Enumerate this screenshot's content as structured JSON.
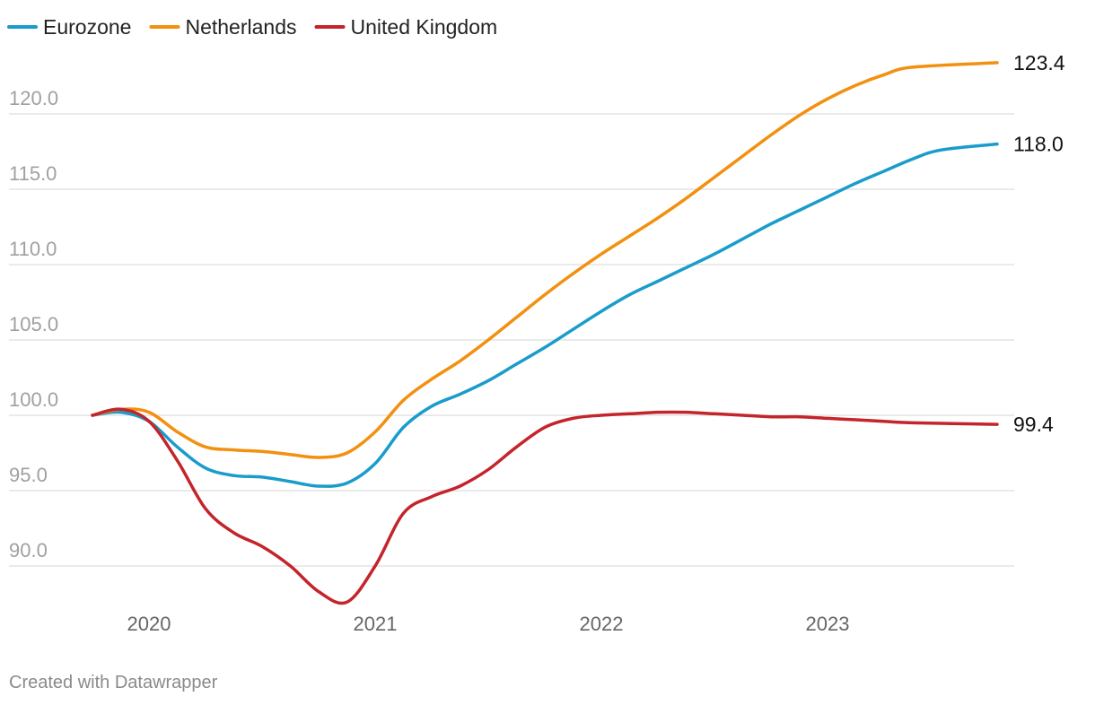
{
  "footer": "Created with Datawrapper",
  "chart_data": {
    "type": "line",
    "title": "",
    "xlabel": "",
    "ylabel": "",
    "ylim": [
      87.5,
      125
    ],
    "yticks": [
      90,
      95,
      100,
      105,
      110,
      115,
      120
    ],
    "ytick_labels": [
      "90.0",
      "95.0",
      "100.0",
      "105.0",
      "110.0",
      "115.0",
      "120.0"
    ],
    "xlim": [
      2019.75,
      2023.75
    ],
    "xticks": [
      2020,
      2021,
      2022,
      2023
    ],
    "xtick_labels": [
      "2020",
      "2021",
      "2022",
      "2023"
    ],
    "legend_position": "top-left",
    "grid": true,
    "series": [
      {
        "name": "Eurozone",
        "color": "#1a9ccb",
        "end_label": "118.0",
        "points": [
          [
            2019.75,
            100.0
          ],
          [
            2019.875,
            100.2
          ],
          [
            2020.0,
            99.6
          ],
          [
            2020.125,
            97.9
          ],
          [
            2020.25,
            96.5
          ],
          [
            2020.375,
            96.0
          ],
          [
            2020.5,
            95.9
          ],
          [
            2020.625,
            95.6
          ],
          [
            2020.75,
            95.3
          ],
          [
            2020.875,
            95.5
          ],
          [
            2021.0,
            96.8
          ],
          [
            2021.125,
            99.2
          ],
          [
            2021.25,
            100.6
          ],
          [
            2021.375,
            101.4
          ],
          [
            2021.5,
            102.3
          ],
          [
            2021.625,
            103.4
          ],
          [
            2021.75,
            104.5
          ],
          [
            2021.875,
            105.7
          ],
          [
            2022.0,
            106.9
          ],
          [
            2022.125,
            108.0
          ],
          [
            2022.25,
            108.9
          ],
          [
            2022.375,
            109.8
          ],
          [
            2022.5,
            110.7
          ],
          [
            2022.625,
            111.7
          ],
          [
            2022.75,
            112.7
          ],
          [
            2022.875,
            113.6
          ],
          [
            2023.0,
            114.5
          ],
          [
            2023.125,
            115.4
          ],
          [
            2023.25,
            116.2
          ],
          [
            2023.375,
            117.0
          ],
          [
            2023.5,
            117.6
          ],
          [
            2023.75,
            118.0
          ]
        ]
      },
      {
        "name": "Netherlands",
        "color": "#f2900f",
        "end_label": "123.4",
        "points": [
          [
            2019.75,
            100.0
          ],
          [
            2019.875,
            100.4
          ],
          [
            2020.0,
            100.2
          ],
          [
            2020.125,
            98.9
          ],
          [
            2020.25,
            97.9
          ],
          [
            2020.375,
            97.7
          ],
          [
            2020.5,
            97.6
          ],
          [
            2020.625,
            97.4
          ],
          [
            2020.75,
            97.2
          ],
          [
            2020.875,
            97.5
          ],
          [
            2021.0,
            98.9
          ],
          [
            2021.125,
            101.0
          ],
          [
            2021.25,
            102.4
          ],
          [
            2021.375,
            103.6
          ],
          [
            2021.5,
            105.0
          ],
          [
            2021.625,
            106.5
          ],
          [
            2021.75,
            108.0
          ],
          [
            2021.875,
            109.4
          ],
          [
            2022.0,
            110.7
          ],
          [
            2022.125,
            111.9
          ],
          [
            2022.25,
            113.1
          ],
          [
            2022.375,
            114.4
          ],
          [
            2022.5,
            115.8
          ],
          [
            2022.625,
            117.2
          ],
          [
            2022.75,
            118.6
          ],
          [
            2022.875,
            119.9
          ],
          [
            2023.0,
            121.0
          ],
          [
            2023.125,
            121.9
          ],
          [
            2023.25,
            122.6
          ],
          [
            2023.375,
            123.1
          ],
          [
            2023.75,
            123.4
          ]
        ]
      },
      {
        "name": "United Kingdom",
        "color": "#c4242b",
        "end_label": "99.4",
        "points": [
          [
            2019.75,
            100.0
          ],
          [
            2019.875,
            100.4
          ],
          [
            2020.0,
            99.6
          ],
          [
            2020.125,
            97.0
          ],
          [
            2020.25,
            93.8
          ],
          [
            2020.375,
            92.2
          ],
          [
            2020.5,
            91.3
          ],
          [
            2020.625,
            90.0
          ],
          [
            2020.75,
            88.3
          ],
          [
            2020.875,
            87.6
          ],
          [
            2021.0,
            90.0
          ],
          [
            2021.125,
            93.5
          ],
          [
            2021.25,
            94.6
          ],
          [
            2021.375,
            95.3
          ],
          [
            2021.5,
            96.4
          ],
          [
            2021.625,
            97.9
          ],
          [
            2021.75,
            99.2
          ],
          [
            2021.875,
            99.8
          ],
          [
            2022.0,
            100.0
          ],
          [
            2022.125,
            100.1
          ],
          [
            2022.25,
            100.2
          ],
          [
            2022.375,
            100.2
          ],
          [
            2022.5,
            100.1
          ],
          [
            2022.625,
            100.0
          ],
          [
            2022.75,
            99.9
          ],
          [
            2022.875,
            99.9
          ],
          [
            2023.0,
            99.8
          ],
          [
            2023.125,
            99.7
          ],
          [
            2023.25,
            99.6
          ],
          [
            2023.375,
            99.5
          ],
          [
            2023.75,
            99.4
          ]
        ]
      }
    ]
  }
}
